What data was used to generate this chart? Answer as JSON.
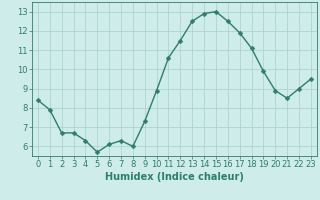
{
  "x": [
    0,
    1,
    2,
    3,
    4,
    5,
    6,
    7,
    8,
    9,
    10,
    11,
    12,
    13,
    14,
    15,
    16,
    17,
    18,
    19,
    20,
    21,
    22,
    23
  ],
  "y": [
    8.4,
    7.9,
    6.7,
    6.7,
    6.3,
    5.7,
    6.1,
    6.3,
    6.0,
    7.3,
    8.9,
    10.6,
    11.5,
    12.5,
    12.9,
    13.0,
    12.5,
    11.9,
    11.1,
    9.9,
    8.9,
    8.5,
    9.0,
    9.5
  ],
  "line_color": "#2e7d6e",
  "marker": "D",
  "marker_size": 2.5,
  "line_width": 1.0,
  "bg_color": "#ceecea",
  "grid_color": "#aacfcc",
  "xlabel": "Humidex (Indice chaleur)",
  "ylabel": "",
  "xlim": [
    -0.5,
    23.5
  ],
  "ylim": [
    5.5,
    13.5
  ],
  "yticks": [
    6,
    7,
    8,
    9,
    10,
    11,
    12,
    13
  ],
  "xticks": [
    0,
    1,
    2,
    3,
    4,
    5,
    6,
    7,
    8,
    9,
    10,
    11,
    12,
    13,
    14,
    15,
    16,
    17,
    18,
    19,
    20,
    21,
    22,
    23
  ],
  "tick_color": "#2e7d6e",
  "label_color": "#2e7d6e",
  "xlabel_fontsize": 7.0,
  "tick_fontsize": 6.0
}
